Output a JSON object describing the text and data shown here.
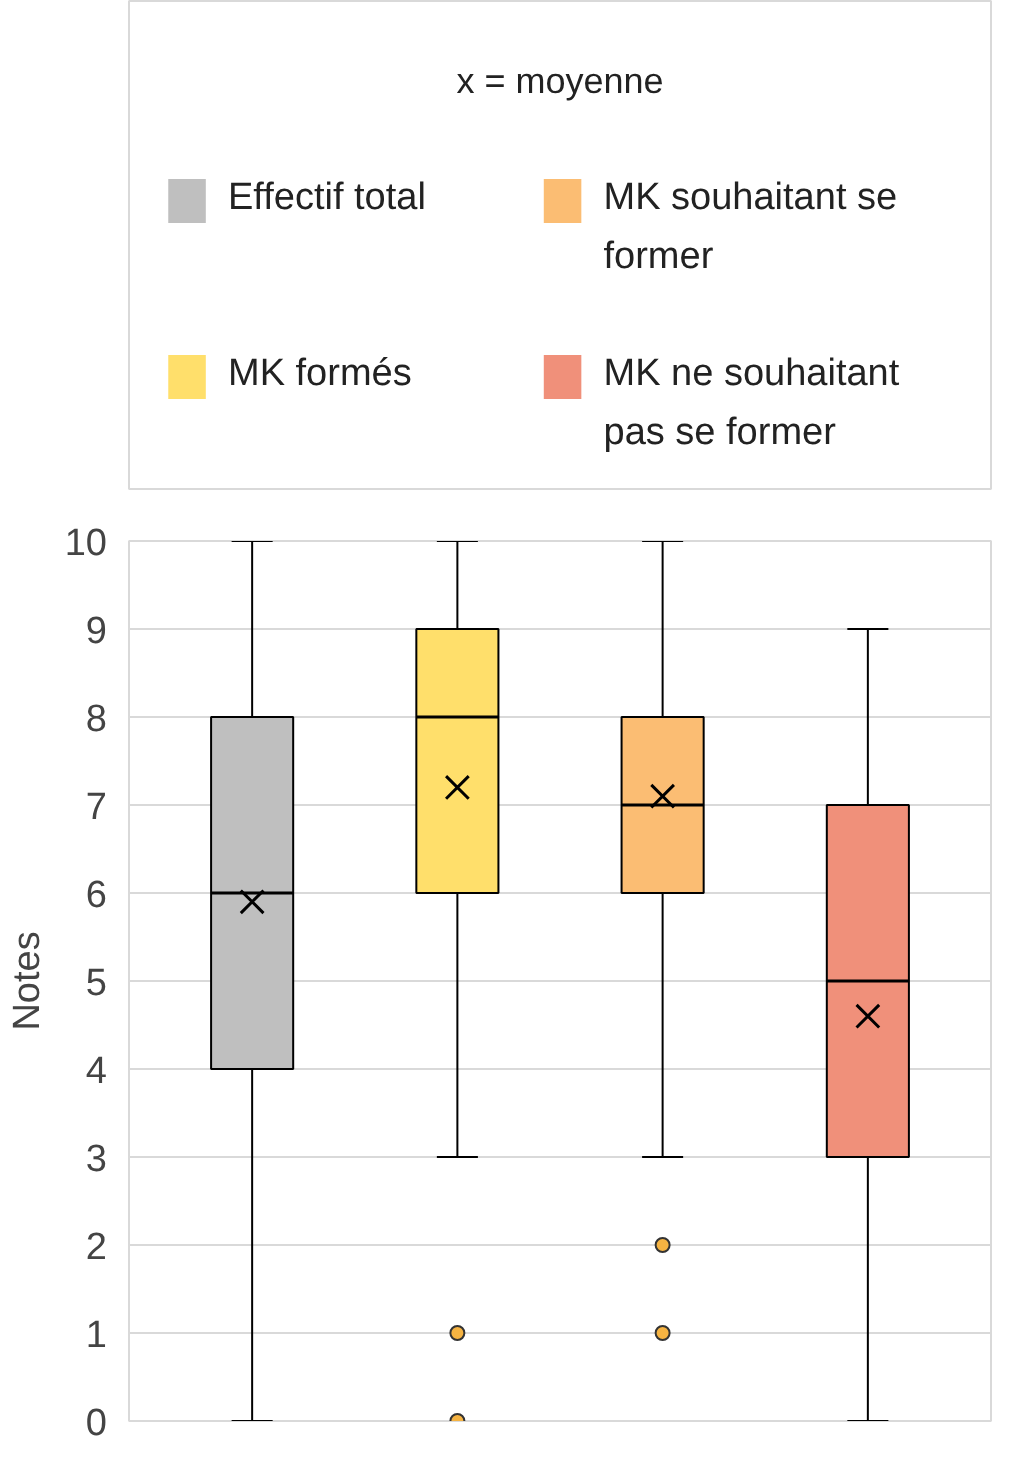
{
  "chart_data": {
    "type": "box",
    "legend_title": "x = moyenne",
    "ylabel": "Notes",
    "categories": [
      null,
      null,
      null,
      null
    ],
    "ylim": [
      0,
      10
    ],
    "yticks": [
      0,
      1,
      2,
      3,
      4,
      5,
      6,
      7,
      8,
      9,
      10
    ],
    "grid": "y",
    "legend": "top",
    "tick_labels": "y",
    "series": [
      {
        "name": "Effectif total",
        "color": "#bfbfbf",
        "boxes": [
          {
            "low": 0,
            "q1": 4,
            "median": 6,
            "q3": 8,
            "high": 10,
            "mean": 5.9
          },
          null,
          null,
          null
        ]
      },
      {
        "name": "MK formés",
        "color": "#ffdf6b",
        "boxes": [
          null,
          {
            "low": 3,
            "q1": 6,
            "median": 8,
            "q3": 9,
            "high": 10,
            "mean": 7.2,
            "outliers": [
              1,
              0
            ]
          },
          null,
          null
        ]
      },
      {
        "name": "MK souhaitant se former",
        "color": "#fbbd73",
        "boxes": [
          null,
          null,
          {
            "low": 3,
            "q1": 6,
            "median": 7,
            "q3": 8,
            "high": 10,
            "mean": 7.1,
            "outliers": [
              2,
              1
            ]
          },
          null
        ]
      },
      {
        "name": "MK ne souhaitant pas se former",
        "color": "#f0907a",
        "boxes": [
          null,
          null,
          null,
          {
            "low": 0,
            "q1": 3,
            "median": 5,
            "q3": 7,
            "high": 9,
            "mean": 4.6
          }
        ]
      }
    ]
  }
}
